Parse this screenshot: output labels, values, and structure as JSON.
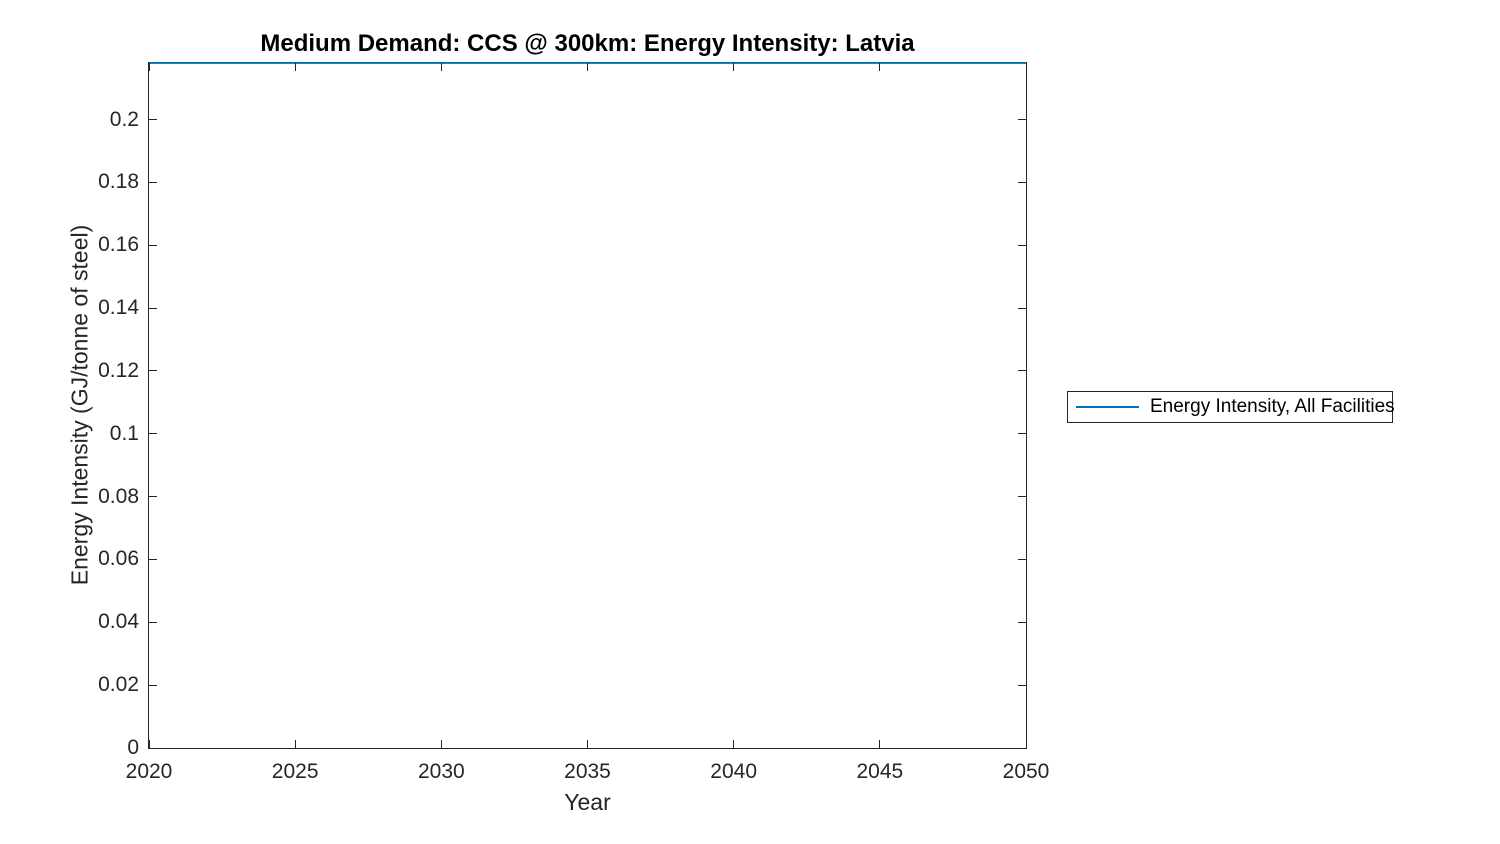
{
  "figure": {
    "background": "#ffffff"
  },
  "chart_data": {
    "type": "line",
    "title": "Medium Demand: CCS @ 300km: Energy Intensity: Latvia",
    "xlabel": "Year",
    "ylabel": "Energy Intensity (GJ/tonne of steel)",
    "xlim": [
      2020,
      2050
    ],
    "ylim": [
      0,
      0.218
    ],
    "xticks": [
      2020,
      2025,
      2030,
      2035,
      2040,
      2045,
      2050
    ],
    "xtick_labels": [
      "2020",
      "2025",
      "2030",
      "2035",
      "2040",
      "2045",
      "2050"
    ],
    "yticks": [
      0,
      0.02,
      0.04,
      0.06,
      0.08,
      0.1,
      0.12,
      0.14,
      0.16,
      0.18,
      0.2
    ],
    "ytick_labels": [
      "0",
      "0.02",
      "0.04",
      "0.06",
      "0.08",
      "0.1",
      "0.12",
      "0.14",
      "0.16",
      "0.18",
      "0.2"
    ],
    "grid": false,
    "box": true,
    "tick_direction": "in",
    "axis_color": "#262626",
    "legend_position": "east-outside",
    "series": [
      {
        "name": "Energy Intensity, All Facilities",
        "color": "#0072BD",
        "x": [
          2020,
          2025,
          2030,
          2035,
          2040,
          2045,
          2050
        ],
        "values": [
          0.218,
          0.218,
          0.218,
          0.218,
          0.218,
          0.218,
          0.218
        ]
      }
    ]
  }
}
